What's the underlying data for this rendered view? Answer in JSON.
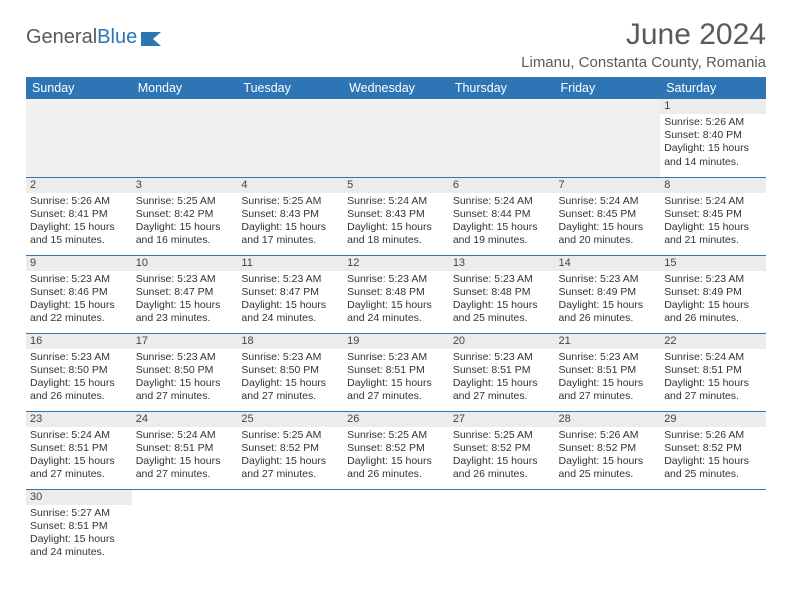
{
  "brand": {
    "part1": "General",
    "part2": "Blue"
  },
  "title": "June 2024",
  "location": "Limanu, Constanta County, Romania",
  "colors": {
    "header_bg": "#2e75b6",
    "header_text": "#ffffff",
    "daynum_bg": "#ececec",
    "border": "#2e75b6",
    "page_bg": "#ffffff",
    "title_color": "#5a5a5a"
  },
  "typography": {
    "month_title_fontsize": 30,
    "location_fontsize": 15,
    "dayhead_fontsize": 12.5,
    "cell_fontsize": 10.5
  },
  "weekdays": [
    "Sunday",
    "Monday",
    "Tuesday",
    "Wednesday",
    "Thursday",
    "Friday",
    "Saturday"
  ],
  "labels": {
    "sunrise": "Sunrise:",
    "sunset": "Sunset:",
    "daylight": "Daylight:",
    "hours_word": "hours",
    "and_word": "and",
    "minutes_word": "minutes."
  },
  "grid": [
    [
      null,
      null,
      null,
      null,
      null,
      null,
      {
        "day": 1,
        "sunrise": "5:26 AM",
        "sunset": "8:40 PM",
        "daylight_h": 15,
        "daylight_m": 14
      }
    ],
    [
      {
        "day": 2,
        "sunrise": "5:26 AM",
        "sunset": "8:41 PM",
        "daylight_h": 15,
        "daylight_m": 15
      },
      {
        "day": 3,
        "sunrise": "5:25 AM",
        "sunset": "8:42 PM",
        "daylight_h": 15,
        "daylight_m": 16
      },
      {
        "day": 4,
        "sunrise": "5:25 AM",
        "sunset": "8:43 PM",
        "daylight_h": 15,
        "daylight_m": 17
      },
      {
        "day": 5,
        "sunrise": "5:24 AM",
        "sunset": "8:43 PM",
        "daylight_h": 15,
        "daylight_m": 18
      },
      {
        "day": 6,
        "sunrise": "5:24 AM",
        "sunset": "8:44 PM",
        "daylight_h": 15,
        "daylight_m": 19
      },
      {
        "day": 7,
        "sunrise": "5:24 AM",
        "sunset": "8:45 PM",
        "daylight_h": 15,
        "daylight_m": 20
      },
      {
        "day": 8,
        "sunrise": "5:24 AM",
        "sunset": "8:45 PM",
        "daylight_h": 15,
        "daylight_m": 21
      }
    ],
    [
      {
        "day": 9,
        "sunrise": "5:23 AM",
        "sunset": "8:46 PM",
        "daylight_h": 15,
        "daylight_m": 22
      },
      {
        "day": 10,
        "sunrise": "5:23 AM",
        "sunset": "8:47 PM",
        "daylight_h": 15,
        "daylight_m": 23
      },
      {
        "day": 11,
        "sunrise": "5:23 AM",
        "sunset": "8:47 PM",
        "daylight_h": 15,
        "daylight_m": 24
      },
      {
        "day": 12,
        "sunrise": "5:23 AM",
        "sunset": "8:48 PM",
        "daylight_h": 15,
        "daylight_m": 24
      },
      {
        "day": 13,
        "sunrise": "5:23 AM",
        "sunset": "8:48 PM",
        "daylight_h": 15,
        "daylight_m": 25
      },
      {
        "day": 14,
        "sunrise": "5:23 AM",
        "sunset": "8:49 PM",
        "daylight_h": 15,
        "daylight_m": 26
      },
      {
        "day": 15,
        "sunrise": "5:23 AM",
        "sunset": "8:49 PM",
        "daylight_h": 15,
        "daylight_m": 26
      }
    ],
    [
      {
        "day": 16,
        "sunrise": "5:23 AM",
        "sunset": "8:50 PM",
        "daylight_h": 15,
        "daylight_m": 26
      },
      {
        "day": 17,
        "sunrise": "5:23 AM",
        "sunset": "8:50 PM",
        "daylight_h": 15,
        "daylight_m": 27
      },
      {
        "day": 18,
        "sunrise": "5:23 AM",
        "sunset": "8:50 PM",
        "daylight_h": 15,
        "daylight_m": 27
      },
      {
        "day": 19,
        "sunrise": "5:23 AM",
        "sunset": "8:51 PM",
        "daylight_h": 15,
        "daylight_m": 27
      },
      {
        "day": 20,
        "sunrise": "5:23 AM",
        "sunset": "8:51 PM",
        "daylight_h": 15,
        "daylight_m": 27
      },
      {
        "day": 21,
        "sunrise": "5:23 AM",
        "sunset": "8:51 PM",
        "daylight_h": 15,
        "daylight_m": 27
      },
      {
        "day": 22,
        "sunrise": "5:24 AM",
        "sunset": "8:51 PM",
        "daylight_h": 15,
        "daylight_m": 27
      }
    ],
    [
      {
        "day": 23,
        "sunrise": "5:24 AM",
        "sunset": "8:51 PM",
        "daylight_h": 15,
        "daylight_m": 27
      },
      {
        "day": 24,
        "sunrise": "5:24 AM",
        "sunset": "8:51 PM",
        "daylight_h": 15,
        "daylight_m": 27
      },
      {
        "day": 25,
        "sunrise": "5:25 AM",
        "sunset": "8:52 PM",
        "daylight_h": 15,
        "daylight_m": 27
      },
      {
        "day": 26,
        "sunrise": "5:25 AM",
        "sunset": "8:52 PM",
        "daylight_h": 15,
        "daylight_m": 26
      },
      {
        "day": 27,
        "sunrise": "5:25 AM",
        "sunset": "8:52 PM",
        "daylight_h": 15,
        "daylight_m": 26
      },
      {
        "day": 28,
        "sunrise": "5:26 AM",
        "sunset": "8:52 PM",
        "daylight_h": 15,
        "daylight_m": 25
      },
      {
        "day": 29,
        "sunrise": "5:26 AM",
        "sunset": "8:52 PM",
        "daylight_h": 15,
        "daylight_m": 25
      }
    ],
    [
      {
        "day": 30,
        "sunrise": "5:27 AM",
        "sunset": "8:51 PM",
        "daylight_h": 15,
        "daylight_m": 24
      },
      null,
      null,
      null,
      null,
      null,
      null
    ]
  ]
}
